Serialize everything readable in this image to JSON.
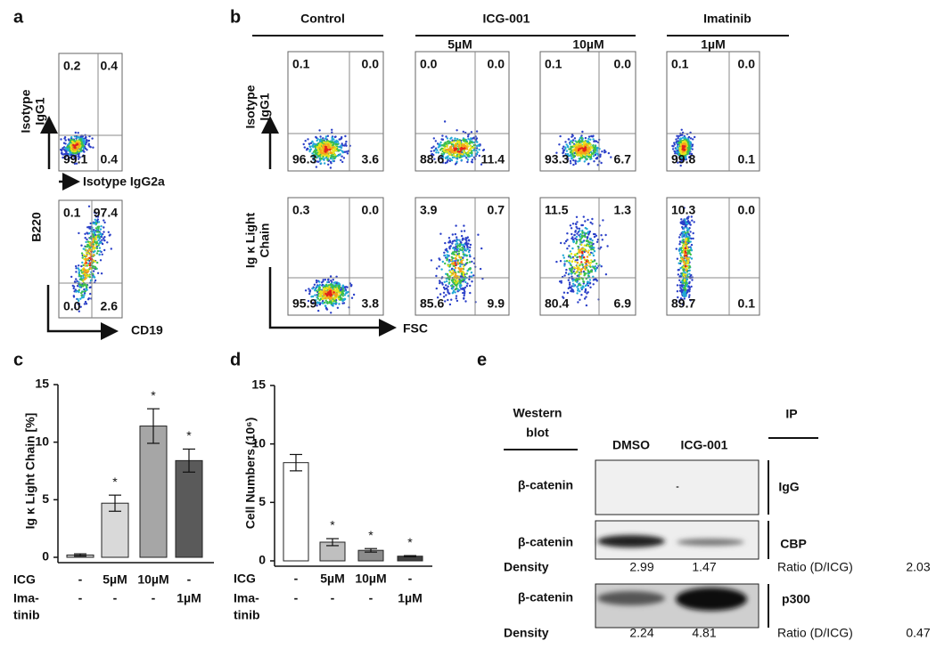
{
  "panel_labels": [
    "a",
    "b",
    "c",
    "d",
    "e"
  ],
  "panel_a": {
    "plots": [
      {
        "y_label": [
          "Isotype",
          "IgG1"
        ],
        "x_label": "Isotype IgG2a",
        "quadrants": [
          "0.2",
          "0.4",
          "99.1",
          "0.4"
        ]
      },
      {
        "y_label": [
          "B220"
        ],
        "x_label": "CD19",
        "quadrants": [
          "0.1",
          "97.4",
          "0.0",
          "2.6"
        ]
      }
    ]
  },
  "panel_b": {
    "headers": [
      "Control",
      "ICG-001",
      "Imatinib"
    ],
    "doses": [
      "5µM",
      "10µM",
      "1µM"
    ],
    "x_label": "FSC",
    "rows": [
      {
        "y_label": [
          "Isotype",
          "IgG1"
        ],
        "quadrants": [
          [
            "0.1",
            "0.0",
            "96.3",
            "3.6"
          ],
          [
            "0.0",
            "0.0",
            "88.6",
            "11.4"
          ],
          [
            "0.1",
            "0.0",
            "93.3",
            "6.7"
          ],
          [
            "0.1",
            "0.0",
            "99.8",
            "0.1"
          ]
        ]
      },
      {
        "y_label": [
          "Ig κ Light",
          "Chain"
        ],
        "quadrants": [
          [
            "0.3",
            "0.0",
            "95.9",
            "3.8"
          ],
          [
            "3.9",
            "0.7",
            "85.6",
            "9.9"
          ],
          [
            "11.5",
            "1.3",
            "80.4",
            "6.9"
          ],
          [
            "10.3",
            "0.0",
            "89.7",
            "0.1"
          ]
        ]
      }
    ]
  },
  "chart_data": [
    {
      "type": "bar",
      "y_label": "Ig κ Light Chain [%]",
      "category_rows": [
        {
          "name": [
            "ICG"
          ],
          "labels": [
            "-",
            "5µM",
            "10µM",
            "-"
          ]
        },
        {
          "name": [
            "Ima-",
            "tinib"
          ],
          "labels": [
            "-",
            "-",
            "-",
            "1µM"
          ]
        }
      ],
      "values": [
        0.2,
        4.7,
        11.4,
        8.4
      ],
      "errors": [
        0.1,
        0.7,
        1.5,
        1.0
      ],
      "colors": [
        "#d0d0d0",
        "#d9d9d9",
        "#a6a6a6",
        "#5a5a5a"
      ],
      "value_annotations": [
        null,
        "*",
        "*",
        "*"
      ],
      "ylim": [
        0,
        15
      ],
      "yticks": [
        0,
        5,
        10,
        15
      ]
    },
    {
      "type": "bar",
      "y_label": "Cell Numbers (10⁶)",
      "category_rows": [
        {
          "name": [
            "ICG"
          ],
          "labels": [
            "-",
            "5µM",
            "10µM",
            "-"
          ]
        },
        {
          "name": [
            "Ima-",
            "tinib"
          ],
          "labels": [
            "-",
            "-",
            "-",
            "1µM"
          ]
        }
      ],
      "values": [
        8.4,
        1.6,
        0.9,
        0.4
      ],
      "errors": [
        0.7,
        0.3,
        0.15,
        0.05
      ],
      "colors": [
        "#ffffff",
        "#bfbfbf",
        "#8c8c8c",
        "#404040"
      ],
      "value_annotations": [
        null,
        "*",
        "*",
        "*"
      ],
      "ylim": [
        0,
        15
      ],
      "yticks": [
        0,
        5,
        10,
        15
      ]
    }
  ],
  "panel_e": {
    "left_header": [
      "Western",
      "blot"
    ],
    "right_header": "IP",
    "lanes": [
      "DMSO",
      "ICG-001"
    ],
    "rows": [
      {
        "protein": "β-catenin",
        "ip": "IgG"
      },
      {
        "protein": "β-catenin",
        "ip": "CBP",
        "density_label": "Density",
        "density": [
          2.99,
          1.47
        ],
        "ratio_label": "Ratio (D/ICG)",
        "ratio": 2.03
      },
      {
        "protein": "β-catenin",
        "ip": "p300",
        "density_label": "Density",
        "density": [
          2.24,
          4.81
        ],
        "ratio_label": "Ratio (D/ICG)",
        "ratio": 0.47
      }
    ]
  }
}
